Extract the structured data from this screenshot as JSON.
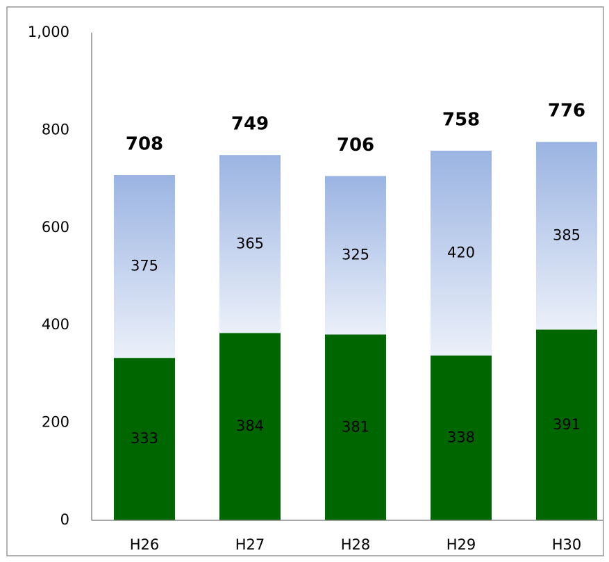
{
  "chart_data": {
    "type": "stacked_bar",
    "categories": [
      "H26",
      "H27",
      "H28",
      "H29",
      "H30"
    ],
    "series": [
      {
        "color": "#006600",
        "values": [
          333,
          384,
          381,
          338,
          391
        ]
      },
      {
        "color": "#9bb4e2",
        "values": [
          375,
          365,
          325,
          420,
          385
        ]
      }
    ],
    "totals": [
      708,
      749,
      706,
      758,
      776
    ],
    "ylim": [
      0,
      1000
    ],
    "yticks": [
      0,
      200,
      400,
      600,
      800,
      {
        "value": 1000,
        "label": "1,000"
      }
    ],
    "grid": false
  }
}
